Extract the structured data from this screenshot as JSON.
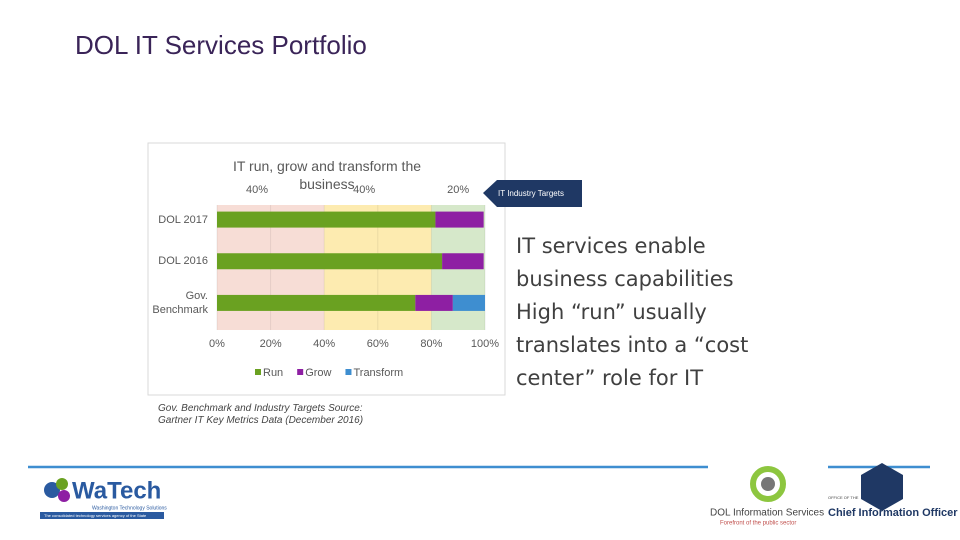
{
  "title": "DOL IT Services Portfolio",
  "chart_data": {
    "type": "stacked-bar-horizontal",
    "title": "IT run, grow and transform the business",
    "categories": [
      "DOL 2017",
      "DOL 2016",
      "Gov. Benchmark"
    ],
    "series": [
      {
        "name": "Run",
        "color": "#6aa121",
        "values": [
          81.5,
          84,
          74
        ]
      },
      {
        "name": "Grow",
        "color": "#8e1fa3",
        "values": [
          18,
          15.5,
          14
        ]
      },
      {
        "name": "Transform",
        "color": "#3e8ed0",
        "values": [
          0,
          0,
          12
        ]
      }
    ],
    "xlim": [
      0,
      100
    ],
    "xticks": [
      {
        "value": 0,
        "label": "0%"
      },
      {
        "value": 20,
        "label": "20%"
      },
      {
        "value": 40,
        "label": "40%"
      },
      {
        "value": 60,
        "label": "60%"
      },
      {
        "value": 80,
        "label": "80%"
      },
      {
        "value": 100,
        "label": "100%"
      }
    ],
    "grid": true,
    "target_bands": [
      {
        "value": 40,
        "label": "40%",
        "color": "#f7ddd6"
      },
      {
        "value": 40,
        "label": "40%",
        "color": "#fdebb0"
      },
      {
        "value": 20,
        "label": "20%",
        "color": "#d6e8ca"
      }
    ],
    "legend": "bottom"
  },
  "callout": "IT Industry Targets",
  "source": "Gov. Benchmark and Industry Targets Source: Gartner IT Key Metrics Data (December 2016)",
  "notes": [
    "IT services enable business capabilities",
    "High “run” usually translates into a “cost center” role for IT"
  ],
  "footer": {
    "watech": "WaTech",
    "watech_sub": "Washington Technology Solutions",
    "watech_tag": "The consolidated technology services agency of the State",
    "dol": "DOL Information Services",
    "dol_tag": "Forefront of the public sector",
    "cio_small": "OFFICE OF THE",
    "cio": "Chief Information Officer"
  }
}
